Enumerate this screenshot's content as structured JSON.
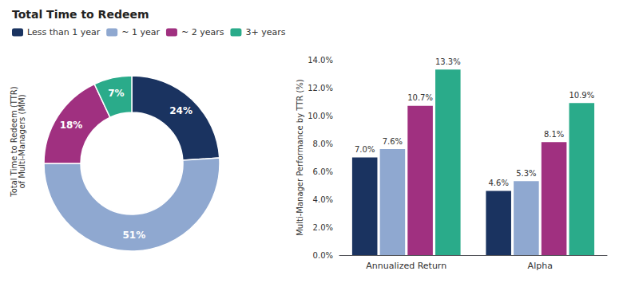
{
  "chart_data": [
    {
      "type": "donut",
      "title": "Total Time to Redeem",
      "ylabel": "Total Time to Redeem (TTR)\nof Multi-Managers (MM)",
      "categories": [
        "Less than 1 year",
        "~ 1 year",
        "~ 2 years",
        "3+ years"
      ],
      "values": [
        24,
        51,
        18,
        7
      ],
      "value_labels": [
        "24%",
        "51%",
        "18%",
        "7%"
      ],
      "colors": [
        "#1a3360",
        "#8fa8d0",
        "#a03080",
        "#2aab8a"
      ],
      "data_labels": true
    },
    {
      "type": "bar",
      "ylabel": "Multi-Manager Performance by TTR (%)",
      "categories": [
        "Annualized Return",
        "Alpha"
      ],
      "series": [
        {
          "name": "Less than 1 year",
          "color": "#1a3360",
          "values": [
            7.0,
            4.6
          ],
          "value_labels": [
            "7.0%",
            "4.6%"
          ]
        },
        {
          "name": "~ 1 year",
          "color": "#8fa8d0",
          "values": [
            7.6,
            5.3
          ],
          "value_labels": [
            "7.6%",
            "5.3%"
          ]
        },
        {
          "name": "~ 2 years",
          "color": "#a03080",
          "values": [
            10.7,
            8.1
          ],
          "value_labels": [
            "10.7%",
            "8.1%"
          ]
        },
        {
          "name": "3+ years",
          "color": "#2aab8a",
          "values": [
            13.3,
            10.9
          ],
          "value_labels": [
            "13.3%",
            "10.9%"
          ]
        }
      ],
      "ylim": [
        0,
        14.0
      ],
      "yticks": [
        {
          "value": 0.0,
          "label": "0.0%"
        },
        {
          "value": 2.0,
          "label": "2.0%"
        },
        {
          "value": 4.0,
          "label": "4.0%"
        },
        {
          "value": 6.0,
          "label": "6.0%"
        },
        {
          "value": 8.0,
          "label": "8.0%"
        },
        {
          "value": 10.0,
          "label": "10.0%"
        },
        {
          "value": 12.0,
          "label": "12.0%"
        },
        {
          "value": 14.0,
          "label": "14.0%"
        }
      ],
      "grid": false,
      "data_labels": true,
      "legend": "upper left"
    }
  ]
}
